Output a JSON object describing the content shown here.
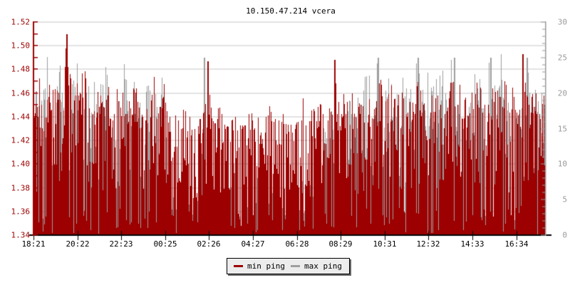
{
  "header": {
    "title": "10.150.47.214 vcera"
  },
  "legend": {
    "items": [
      {
        "label": "min ping",
        "color": "#9c0000"
      },
      {
        "label": "max ping",
        "color": "#9e9e9e"
      }
    ]
  },
  "colors": {
    "background": "#ffffff",
    "grid": "#c8c8c8",
    "bottom_axis": "#000000",
    "left_axis": "#9c0000",
    "right_axis": "#9a9a9a",
    "min_ping": "#9c0000",
    "max_ping": "#9e9e9e"
  },
  "chart_data": {
    "type": "area",
    "title": "10.150.47.214 vcera",
    "grid": true,
    "legend_position": "bottom-center",
    "x_tick_labels": [
      "18:21",
      "20:22",
      "22:23",
      "00:25",
      "02:26",
      "04:27",
      "06:28",
      "08:29",
      "10:31",
      "12:32",
      "14:33",
      "16:34"
    ],
    "left_axis": {
      "min": 1.34,
      "max": 1.52,
      "label_step": 0.02,
      "minor_step": 0.01,
      "tick_labels": [
        "1.52",
        "1.50",
        "1.48",
        "1.46",
        "1.44",
        "1.42",
        "1.40",
        "1.38",
        "1.36",
        "1.34"
      ],
      "color": "#9c0000"
    },
    "right_axis": {
      "min": 0,
      "max": 30,
      "label_step": 5,
      "minor_step": 1,
      "tick_labels": [
        "30",
        "25",
        "20",
        "15",
        "10",
        "5",
        "0"
      ],
      "color": "#9a9a9a"
    },
    "noise_seed": 1337,
    "series": [
      {
        "name": "min ping",
        "axis": "left",
        "style": "area",
        "color": "#9c0000",
        "values": [
          1.46,
          1.45,
          1.47,
          1.44,
          1.46,
          1.45,
          1.465,
          1.46,
          1.44,
          1.51,
          1.465,
          1.45,
          1.47,
          1.46,
          1.475,
          1.45,
          1.46,
          1.44,
          1.47,
          1.45,
          1.46,
          1.475,
          1.45,
          1.47,
          1.46,
          1.44,
          1.45,
          1.47,
          1.46,
          1.45,
          1.44,
          1.46,
          1.45,
          1.47,
          1.44,
          1.45,
          1.46,
          1.44,
          1.43,
          1.445,
          1.44,
          1.43,
          1.445,
          1.44,
          1.435,
          1.43,
          1.44,
          1.445,
          1.487,
          1.44,
          1.435,
          1.44,
          1.445,
          1.43,
          1.44,
          1.435,
          1.445,
          1.44,
          1.43,
          1.44,
          1.445,
          1.435,
          1.44,
          1.43,
          1.445,
          1.44,
          1.435,
          1.44,
          1.43,
          1.445,
          1.44,
          1.435,
          1.43,
          1.44,
          1.445,
          1.44,
          1.435,
          1.45,
          1.44,
          1.455,
          1.44,
          1.45,
          1.445,
          1.488,
          1.45,
          1.44,
          1.455,
          1.445,
          1.45,
          1.44,
          1.46,
          1.45,
          1.47,
          1.46,
          1.44,
          1.46,
          1.47,
          1.45,
          1.46,
          1.475,
          1.45,
          1.46,
          1.47,
          1.44,
          1.46,
          1.45,
          1.47,
          1.46,
          1.45,
          1.44,
          1.46,
          1.47,
          1.45,
          1.46,
          1.44,
          1.47,
          1.46,
          1.45,
          1.47,
          1.46,
          1.44,
          1.45,
          1.46,
          1.47,
          1.45,
          1.46,
          1.44,
          1.47,
          1.45,
          1.46,
          1.47,
          1.45,
          1.46,
          1.47,
          1.44,
          1.493,
          1.46,
          1.45,
          1.465,
          1.46,
          1.45,
          1.46
        ]
      },
      {
        "name": "max ping",
        "axis": "right",
        "style": "area",
        "color": "#9e9e9e",
        "values": [
          20,
          18,
          22,
          19,
          24,
          21,
          18,
          23,
          20,
          22,
          19,
          21,
          24,
          20,
          18,
          22,
          24,
          19,
          21,
          20,
          23,
          18,
          22,
          20,
          19,
          24,
          21,
          18,
          20,
          22,
          19,
          23,
          20,
          18,
          21,
          19,
          22,
          6,
          4,
          8,
          5,
          3,
          6,
          4,
          7,
          5,
          3,
          25,
          6,
          4,
          5,
          8,
          3,
          6,
          4,
          12,
          5,
          3,
          7,
          4,
          6,
          5,
          8,
          3,
          5,
          4,
          6,
          3,
          5,
          7,
          4,
          6,
          5,
          3,
          8,
          4,
          6,
          8,
          12,
          10,
          15,
          13,
          18,
          16,
          14,
          19,
          17,
          20,
          18,
          16,
          22,
          20,
          24,
          18,
          21,
          25,
          19,
          23,
          20,
          22,
          18,
          24,
          21,
          19,
          23,
          20,
          25,
          18,
          22,
          21,
          19,
          24,
          20,
          23,
          18,
          22,
          25,
          19,
          21,
          20,
          24,
          18,
          23,
          22,
          19,
          21,
          25,
          20,
          22,
          24,
          18,
          21,
          23,
          19,
          22,
          20,
          25,
          21,
          18,
          23,
          20,
          22
        ]
      }
    ]
  }
}
